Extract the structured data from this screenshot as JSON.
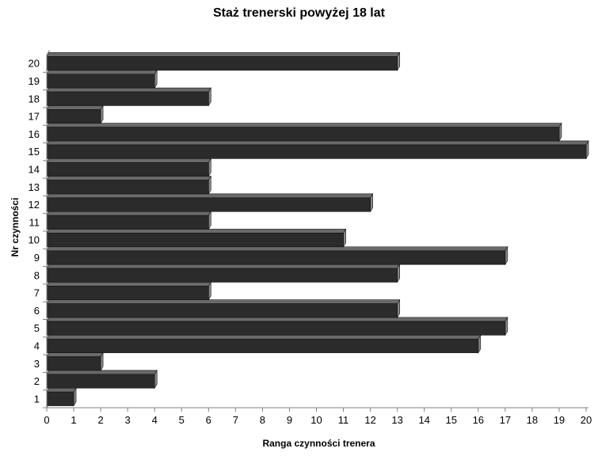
{
  "chart_data": {
    "type": "bar",
    "orientation": "horizontal",
    "title": "Staż trenerski powyżej 18 lat",
    "xlabel": "Ranga czynności trenera",
    "ylabel": "Nr czynności",
    "categories": [
      "1",
      "2",
      "3",
      "4",
      "5",
      "6",
      "7",
      "8",
      "9",
      "10",
      "11",
      "12",
      "13",
      "14",
      "15",
      "16",
      "17",
      "18",
      "19",
      "20"
    ],
    "values": [
      1,
      4,
      2,
      16,
      17,
      13,
      6,
      13,
      17,
      11,
      6,
      12,
      6,
      6,
      20,
      19,
      2,
      6,
      4,
      13
    ],
    "xlim": [
      0,
      20
    ],
    "xticks": [
      0,
      1,
      2,
      3,
      4,
      5,
      6,
      7,
      8,
      9,
      10,
      11,
      12,
      13,
      14,
      15,
      16,
      17,
      18,
      19,
      20
    ],
    "grid": false,
    "legend": "none",
    "bar_color": "#2b2b2b"
  }
}
